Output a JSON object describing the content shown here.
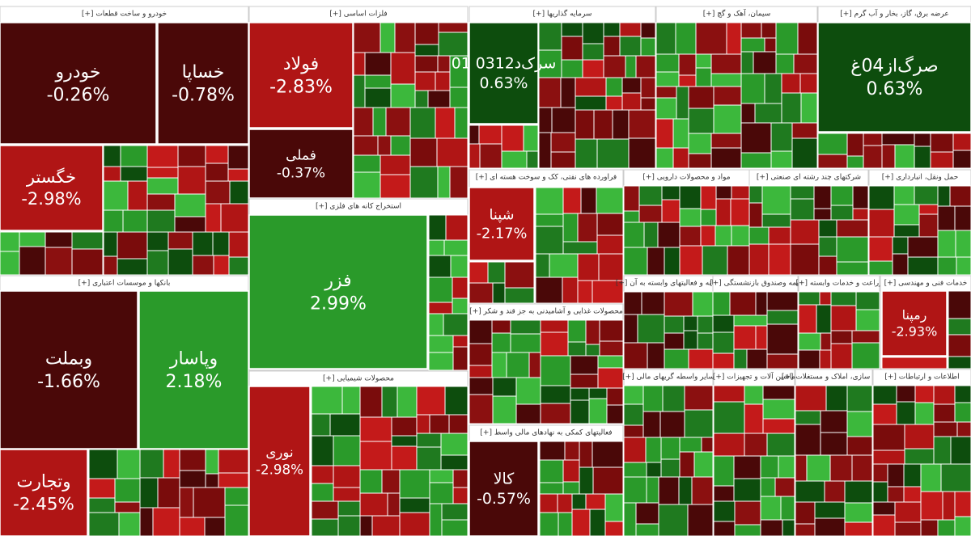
{
  "chart_data": {
    "type": "treemap",
    "groups": [
      {
        "name": "خودرو و ساخت قطعات [+]",
        "names": [
          "خودرو",
          "خساپا",
          "خگستر"
        ],
        "values": [
          -0.26,
          -0.78,
          -2.98
        ],
        "value_labels": [
          "-0.26%",
          "-0.78%",
          "-2.98%"
        ],
        "colors": [
          "#4a0808",
          "#4a0808",
          "#b01515"
        ]
      },
      {
        "name": "فلزات اساسی [+]",
        "names": [
          "فولاد",
          "فملی"
        ],
        "values": [
          -2.83,
          -0.37
        ],
        "value_labels": [
          "-2.83%",
          "-0.37%"
        ],
        "colors": [
          "#b01515",
          "#4a0808"
        ]
      },
      {
        "name": "سرمایه گذاریها [+]",
        "names": [
          "سرک‌د0312 01"
        ],
        "values": [
          0.63
        ],
        "value_labels": [
          "0.63%"
        ],
        "colors": [
          "#0d4d0d"
        ]
      },
      {
        "name": "سیمان، آهک و گچ [+]",
        "names": [],
        "values": [],
        "value_labels": [],
        "colors": []
      },
      {
        "name": "عرضه برق، گاز، بخار و آب گرم [+]",
        "names": [
          "صرگ‌از04غ"
        ],
        "values": [
          0.63
        ],
        "value_labels": [
          "0.63%"
        ],
        "colors": [
          "#0d4d0d"
        ]
      },
      {
        "name": "بانکها و موسسات اعتباری [+]",
        "names": [
          "وبملت",
          "وپاسار",
          "وتجارت"
        ],
        "values": [
          -1.66,
          2.18,
          -2.45
        ],
        "value_labels": [
          "-1.66%",
          "2.18%",
          "-2.45%"
        ],
        "colors": [
          "#4a0808",
          "#2a9a2a",
          "#b01515"
        ]
      },
      {
        "name": "استخراج کانه های فلزی [+]",
        "names": [
          "فزر"
        ],
        "values": [
          2.99
        ],
        "value_labels": [
          "2.99%"
        ],
        "colors": [
          "#2a9a2a"
        ]
      },
      {
        "name": "محصولات شیمیایی [+]",
        "names": [
          "نوری"
        ],
        "values": [
          -2.98
        ],
        "value_labels": [
          "-2.98%"
        ],
        "colors": [
          "#b01515"
        ]
      },
      {
        "name": "فراورده های نفتی، کک و سوخت هسته ای [+]",
        "names": [
          "شپنا"
        ],
        "values": [
          -2.17
        ],
        "value_labels": [
          "-2.17%"
        ],
        "colors": [
          "#b01515"
        ]
      },
      {
        "name": "محصولات غذایی و آشامیدنی به جز قند و شکر [+]",
        "names": [],
        "values": [],
        "value_labels": [],
        "colors": []
      },
      {
        "name": "فعالیتهای کمکی به نهادهای مالی واسط [+]",
        "names": [
          "کالا"
        ],
        "values": [
          -0.57
        ],
        "value_labels": [
          "-0.57%"
        ],
        "colors": [
          "#4a0808"
        ]
      },
      {
        "name": "مواد و محصولات دارویی [+]",
        "names": [],
        "values": [],
        "value_labels": [],
        "colors": []
      },
      {
        "name": "شرکتهای چند رشته ای صنعتی [+]",
        "names": [],
        "values": [],
        "value_labels": [],
        "colors": []
      },
      {
        "name": "حمل ونقل، انبارداری [+]",
        "names": [],
        "values": [],
        "value_labels": [],
        "colors": []
      },
      {
        "name": "رایانه و فعالیتهای وابسته به آن [+]",
        "names": [],
        "values": [],
        "value_labels": [],
        "colors": []
      },
      {
        "name": "بیمه وصندوق بازنشستگی [+]",
        "names": [],
        "values": [],
        "value_labels": [],
        "colors": []
      },
      {
        "name": "زراعت و خدمات وابسته [+]",
        "names": [],
        "values": [],
        "value_labels": [],
        "colors": []
      },
      {
        "name": "خدمات فنی و مهندسی [+]",
        "names": [
          "رمپنا"
        ],
        "values": [
          -2.93
        ],
        "value_labels": [
          "-2.93%"
        ],
        "colors": [
          "#b01515"
        ]
      },
      {
        "name": "سایر واسطه گریهای مالی [+]",
        "names": [],
        "values": [],
        "value_labels": [],
        "colors": []
      },
      {
        "name": "ماشین آلات و تجهیزات [+]",
        "names": [],
        "values": [],
        "value_labels": [],
        "colors": []
      },
      {
        "name": "انبوه سازی، املاک و مستغلات [+]",
        "names": [],
        "values": [],
        "value_labels": [],
        "colors": []
      },
      {
        "name": "اطلاعات و ارتباطات [+]",
        "names": [],
        "values": [],
        "value_labels": [],
        "colors": []
      }
    ]
  }
}
